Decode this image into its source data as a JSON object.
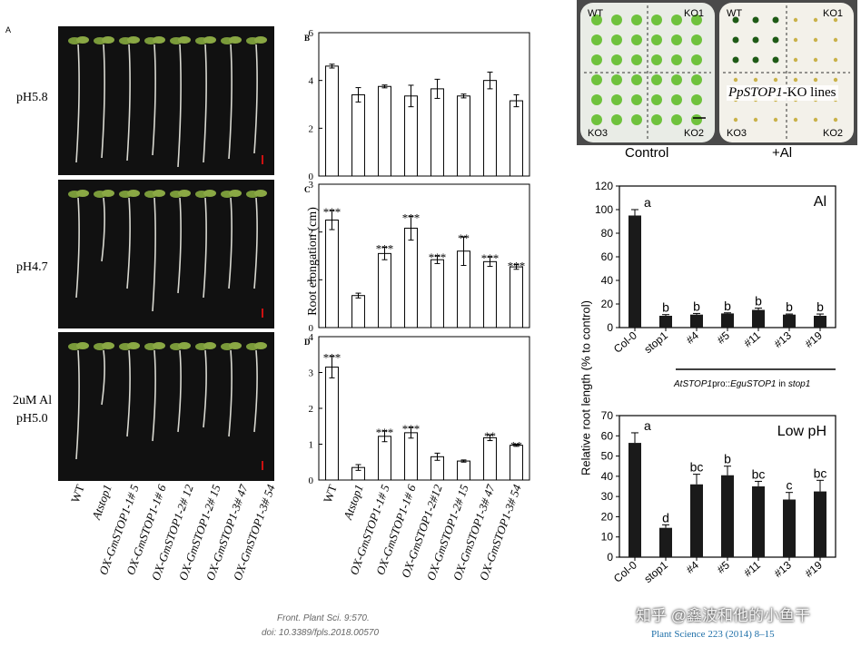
{
  "left_figure": {
    "panel_a_letter": "A",
    "row_labels": [
      "pH5.8",
      "pH4.7",
      "2uM Al",
      "pH5.0"
    ],
    "genotypes": [
      "WT",
      "Atstop1",
      "OX-GmSTOP1-1# 5",
      "OX-GmSTOP1-1# 6",
      "OX-GmSTOP1-2# 12",
      "OX-GmSTOP1-2# 15",
      "OX-GmSTOP1-3# 47",
      "OX-GmSTOP1-3# 54"
    ],
    "bar_genotypes": [
      "WT",
      "Atstop1",
      "OX-GmSTOP1-1# 5",
      "OX-GmSTOP1-1# 6",
      "OX-GmSTOP1-2#12",
      "OX-GmSTOP1-2# 15",
      "OX-GmSTOP1-3# 47",
      "OX-GmSTOP1-3# 54"
    ],
    "y_axis_label": "Root elongation (cm)",
    "citation_line1": "Front. Plant Sci. 9:570.",
    "citation_line2": "doi: 10.3389/fpls.2018.00570"
  },
  "moss_panel": {
    "control_label": "Control",
    "al_label": "+Al",
    "plate_labels": [
      "WT",
      "KO1",
      "KO3",
      "KO2"
    ],
    "overlay_prefix": "Pp",
    "overlay_italic": "STOP1",
    "overlay_suffix": "-KO lines"
  },
  "right_figure": {
    "y_axis_label": "Relative root length (% to control)",
    "categories": [
      "Col-0",
      "stop1",
      "#4",
      "#5",
      "#11",
      "#13",
      "#19"
    ],
    "bracket_prefix": "AtSTOP1",
    "bracket_mid": "pro::",
    "bracket_gene": "EguSTOP1",
    "bracket_suffix": " in ",
    "bracket_italic_end": "stop1",
    "watermark": "知乎 @鑫波和他的小鱼干",
    "citation": "Plant Science 223 (2014) 8–15"
  },
  "chart_data": [
    {
      "type": "bar",
      "panel": "B",
      "categories": [
        "WT",
        "Atstop1",
        "OX-GmSTOP1-1# 5",
        "OX-GmSTOP1-1# 6",
        "OX-GmSTOP1-2#12",
        "OX-GmSTOP1-2# 15",
        "OX-GmSTOP1-3# 47",
        "OX-GmSTOP1-3# 54"
      ],
      "values": [
        4.6,
        3.4,
        3.75,
        3.35,
        3.65,
        3.35,
        4.0,
        3.15
      ],
      "errors": [
        0.08,
        0.3,
        0.06,
        0.45,
        0.4,
        0.08,
        0.35,
        0.25
      ],
      "significance": [
        "",
        "",
        "",
        "",
        "",
        "",
        "",
        ""
      ],
      "ylim": [
        0,
        6
      ],
      "yticks": [
        0,
        2,
        4,
        6
      ]
    },
    {
      "type": "bar",
      "panel": "C",
      "categories": [
        "WT",
        "Atstop1",
        "OX-GmSTOP1-1# 5",
        "OX-GmSTOP1-1# 6",
        "OX-GmSTOP1-2#12",
        "OX-GmSTOP1-2# 15",
        "OX-GmSTOP1-3# 47",
        "OX-GmSTOP1-3# 54"
      ],
      "values": [
        2.25,
        0.67,
        1.55,
        2.08,
        1.42,
        1.6,
        1.38,
        1.27
      ],
      "errors": [
        0.2,
        0.05,
        0.13,
        0.25,
        0.08,
        0.3,
        0.1,
        0.05
      ],
      "significance": [
        "***",
        "",
        "***",
        "***",
        "***",
        "**",
        "***",
        "***"
      ],
      "ylim": [
        0,
        3
      ],
      "yticks": [
        0,
        1,
        2,
        3
      ]
    },
    {
      "type": "bar",
      "panel": "D",
      "categories": [
        "WT",
        "Atstop1",
        "OX-GmSTOP1-1# 5",
        "OX-GmSTOP1-1# 6",
        "OX-GmSTOP1-2#12",
        "OX-GmSTOP1-2# 15",
        "OX-GmSTOP1-3# 47",
        "OX-GmSTOP1-3# 54"
      ],
      "values": [
        3.15,
        0.35,
        1.22,
        1.32,
        0.65,
        0.53,
        1.18,
        0.97
      ],
      "errors": [
        0.3,
        0.08,
        0.15,
        0.15,
        0.1,
        0.03,
        0.08,
        0.03
      ],
      "significance": [
        "***",
        "",
        "***",
        "***",
        "",
        "",
        "**",
        "**"
      ],
      "ylim": [
        0,
        4
      ],
      "yticks": [
        0,
        1,
        2,
        3,
        4
      ]
    },
    {
      "type": "bar",
      "panel": "Al",
      "title": "Al",
      "categories": [
        "Col-0",
        "stop1",
        "#4",
        "#5",
        "#11",
        "#13",
        "#19"
      ],
      "values": [
        95,
        10,
        11,
        12,
        15,
        11,
        10
      ],
      "errors": [
        5,
        1,
        1,
        0.5,
        1.5,
        0.5,
        1.5
      ],
      "letters": [
        "a",
        "b",
        "b",
        "b",
        "b",
        "b",
        "b"
      ],
      "ylim": [
        0,
        120
      ],
      "yticks": [
        0,
        20,
        40,
        60,
        80,
        100,
        120
      ]
    },
    {
      "type": "bar",
      "panel": "Low pH",
      "title": "Low pH",
      "categories": [
        "Col-0",
        "stop1",
        "#4",
        "#5",
        "#11",
        "#13",
        "#19"
      ],
      "values": [
        56.5,
        14.5,
        36,
        40.5,
        35,
        28.5,
        32.5
      ],
      "errors": [
        5,
        1.5,
        5,
        4.5,
        2.5,
        3.5,
        5.5
      ],
      "letters": [
        "a",
        "d",
        "bc",
        "b",
        "bc",
        "c",
        "bc"
      ],
      "ylim": [
        0,
        70
      ],
      "yticks": [
        0,
        10,
        20,
        30,
        40,
        50,
        60,
        70
      ]
    }
  ]
}
